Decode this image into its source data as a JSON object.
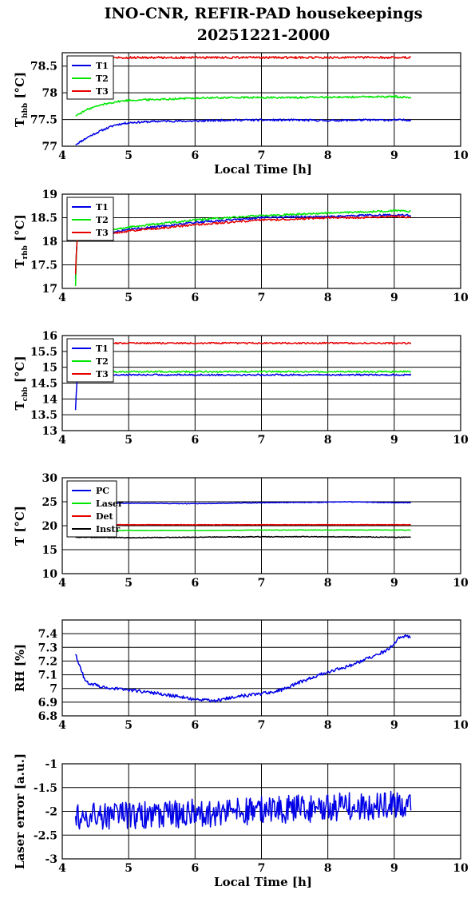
{
  "title": {
    "line1": "INO-CNR, REFIR-PAD housekeepings",
    "line2": "20251221-2000"
  },
  "xlabel": "Local Time [h]",
  "colors": {
    "blue": "#0000e6",
    "green": "#00e600",
    "red": "#e60000",
    "black": "#000000"
  },
  "chart_data": [
    {
      "type": "line",
      "ylabel_main": "T",
      "ylabel_sub": "hbb",
      "ylabel_unit": " [°C]",
      "xlim": [
        4,
        10
      ],
      "ylim": [
        77,
        78.75
      ],
      "xticks": [
        "4",
        "5",
        "6",
        "7",
        "8",
        "9",
        "10"
      ],
      "yticks": [
        {
          "v": 77,
          "t": "77"
        },
        {
          "v": 77.5,
          "t": "77.5"
        },
        {
          "v": 78,
          "t": "78"
        },
        {
          "v": 78.5,
          "t": "78.5"
        }
      ],
      "legend": "top-left",
      "series": [
        {
          "name": "T1",
          "color": "#0000e6",
          "x": [
            4.2,
            4.4,
            4.6,
            4.8,
            5.0,
            5.5,
            6.0,
            6.5,
            7.0,
            7.5,
            8.0,
            8.5,
            9.0,
            9.25
          ],
          "y": [
            77.03,
            77.18,
            77.3,
            77.4,
            77.44,
            77.47,
            77.47,
            77.49,
            77.49,
            77.49,
            77.48,
            77.49,
            77.49,
            77.49
          ],
          "noise": 0.018
        },
        {
          "name": "T2",
          "color": "#00e600",
          "x": [
            4.2,
            4.4,
            4.6,
            4.8,
            5.0,
            5.5,
            6.0,
            6.5,
            7.0,
            7.5,
            8.0,
            8.5,
            9.0,
            9.25
          ],
          "y": [
            77.57,
            77.7,
            77.78,
            77.83,
            77.86,
            77.88,
            77.9,
            77.91,
            77.91,
            77.91,
            77.92,
            77.92,
            77.93,
            77.91
          ],
          "noise": 0.018
        },
        {
          "name": "T3",
          "color": "#e60000",
          "x": [
            4.2,
            4.8,
            5.5,
            6.5,
            7.5,
            8.5,
            9.25
          ],
          "y": [
            78.65,
            78.66,
            78.66,
            78.66,
            78.66,
            78.66,
            78.66
          ],
          "noise": 0.02
        }
      ]
    },
    {
      "type": "line",
      "ylabel_main": "T",
      "ylabel_sub": "rbb",
      "ylabel_unit": " [°C]",
      "xlim": [
        4,
        10
      ],
      "ylim": [
        17,
        19
      ],
      "xticks": [
        "4",
        "5",
        "6",
        "7",
        "8",
        "9",
        "10"
      ],
      "yticks": [
        {
          "v": 17,
          "t": "17"
        },
        {
          "v": 17.5,
          "t": "17.5"
        },
        {
          "v": 18,
          "t": "18"
        },
        {
          "v": 18.5,
          "t": "18.5"
        },
        {
          "v": 19,
          "t": "19"
        }
      ],
      "legend": "top-left",
      "series": [
        {
          "name": "T1",
          "color": "#0000e6",
          "x": [
            4.2,
            4.22,
            4.3,
            4.6,
            5.0,
            5.5,
            6.0,
            6.5,
            7.0,
            7.5,
            8.0,
            8.5,
            9.0,
            9.25
          ],
          "y": [
            17.2,
            18.05,
            18.1,
            18.15,
            18.25,
            18.32,
            18.4,
            18.45,
            18.5,
            18.52,
            18.52,
            18.55,
            18.56,
            18.55
          ],
          "noise": 0.02
        },
        {
          "name": "T2",
          "color": "#00e600",
          "x": [
            4.2,
            4.22,
            4.3,
            4.6,
            5.0,
            5.5,
            6.0,
            6.5,
            7.0,
            7.5,
            8.0,
            8.5,
            9.0,
            9.25
          ],
          "y": [
            17.05,
            18.05,
            18.12,
            18.2,
            18.3,
            18.38,
            18.45,
            18.5,
            18.55,
            18.57,
            18.6,
            18.62,
            18.65,
            18.63
          ],
          "noise": 0.02
        },
        {
          "name": "T3",
          "color": "#e60000",
          "x": [
            4.2,
            4.22,
            4.3,
            4.6,
            5.0,
            5.5,
            6.0,
            6.5,
            7.0,
            7.5,
            8.0,
            8.5,
            9.0,
            9.25
          ],
          "y": [
            17.3,
            18.0,
            18.08,
            18.13,
            18.22,
            18.28,
            18.35,
            18.4,
            18.45,
            18.47,
            18.5,
            18.5,
            18.53,
            18.51
          ],
          "noise": 0.02
        }
      ]
    },
    {
      "type": "line",
      "ylabel_main": "T",
      "ylabel_sub": "cbb",
      "ylabel_unit": " [°C]",
      "xlim": [
        4,
        10
      ],
      "ylim": [
        13,
        16
      ],
      "xticks": [
        "4",
        "5",
        "6",
        "7",
        "8",
        "9",
        "10"
      ],
      "yticks": [
        {
          "v": 13,
          "t": "13"
        },
        {
          "v": 13.5,
          "t": "13.5"
        },
        {
          "v": 14,
          "t": "14"
        },
        {
          "v": 14.5,
          "t": "14.5"
        },
        {
          "v": 15,
          "t": "15"
        },
        {
          "v": 15.5,
          "t": "15.5"
        },
        {
          "v": 16,
          "t": "16"
        }
      ],
      "legend": "top-left",
      "series": [
        {
          "name": "T1",
          "color": "#0000e6",
          "x": [
            4.2,
            4.22,
            4.35,
            5.0,
            6.0,
            7.0,
            8.0,
            9.0,
            9.25
          ],
          "y": [
            13.65,
            14.6,
            14.75,
            14.76,
            14.76,
            14.76,
            14.76,
            14.76,
            14.76
          ],
          "noise": 0.025
        },
        {
          "name": "T2",
          "color": "#00e600",
          "x": [
            4.2,
            4.35,
            5.0,
            6.0,
            7.0,
            8.0,
            9.0,
            9.25
          ],
          "y": [
            14.85,
            14.86,
            14.86,
            14.86,
            14.86,
            14.86,
            14.86,
            14.86
          ],
          "noise": 0.025
        },
        {
          "name": "T3",
          "color": "#e60000",
          "x": [
            4.2,
            4.35,
            5.0,
            6.0,
            7.0,
            8.0,
            9.0,
            9.25
          ],
          "y": [
            15.75,
            15.76,
            15.76,
            15.76,
            15.76,
            15.76,
            15.76,
            15.76
          ],
          "noise": 0.025
        }
      ]
    },
    {
      "type": "line",
      "ylabel_main": "T [°C]",
      "ylabel_sub": "",
      "ylabel_unit": "",
      "xlim": [
        4,
        10
      ],
      "ylim": [
        10,
        30
      ],
      "xticks": [
        "4",
        "5",
        "6",
        "7",
        "8",
        "9",
        "10"
      ],
      "yticks": [
        {
          "v": 10,
          "t": "10"
        },
        {
          "v": 15,
          "t": "15"
        },
        {
          "v": 20,
          "t": "20"
        },
        {
          "v": 25,
          "t": "25"
        },
        {
          "v": 30,
          "t": "30"
        }
      ],
      "legend": "top-left",
      "series": [
        {
          "name": "PC",
          "color": "#0000e6",
          "x": [
            4.2,
            5.0,
            6.0,
            7.0,
            8.0,
            8.3,
            9.0,
            9.25
          ],
          "y": [
            24.7,
            24.7,
            24.6,
            24.8,
            24.9,
            25.0,
            24.8,
            24.8
          ],
          "noise": 0.06
        },
        {
          "name": "Laser",
          "color": "#00e600",
          "x": [
            4.2,
            5.0,
            6.0,
            7.0,
            8.0,
            9.0,
            9.25
          ],
          "y": [
            19.0,
            19.0,
            19.0,
            19.1,
            19.1,
            19.1,
            19.1
          ],
          "noise": 0.06
        },
        {
          "name": "Det",
          "color": "#e60000",
          "x": [
            4.2,
            5.0,
            6.0,
            7.0,
            8.0,
            9.0,
            9.25
          ],
          "y": [
            20.2,
            20.2,
            20.2,
            20.2,
            20.2,
            20.2,
            20.2
          ],
          "noise": 0.05
        },
        {
          "name": "Instr",
          "color": "#000000",
          "x": [
            4.2,
            5.0,
            6.0,
            7.0,
            8.0,
            9.0,
            9.25
          ],
          "y": [
            17.6,
            17.5,
            17.6,
            17.7,
            17.7,
            17.6,
            17.6
          ],
          "noise": 0.08
        }
      ]
    },
    {
      "type": "line",
      "ylabel_main": "RH [%]",
      "ylabel_sub": "",
      "ylabel_unit": "",
      "xlim": [
        4,
        10
      ],
      "ylim": [
        6.8,
        7.5
      ],
      "xticks": [
        "4",
        "5",
        "6",
        "7",
        "8",
        "9",
        "10"
      ],
      "yticks": [
        {
          "v": 6.8,
          "t": "6.8"
        },
        {
          "v": 6.9,
          "t": "6.9"
        },
        {
          "v": 7.0,
          "t": "7"
        },
        {
          "v": 7.1,
          "t": "7.1"
        },
        {
          "v": 7.2,
          "t": "7.2"
        },
        {
          "v": 7.3,
          "t": "7.3"
        },
        {
          "v": 7.4,
          "t": "7.4"
        }
      ],
      "legend": "none",
      "series": [
        {
          "name": "",
          "color": "#0000e6",
          "x": [
            4.2,
            4.35,
            4.6,
            5.0,
            5.5,
            6.0,
            6.3,
            6.6,
            7.0,
            7.3,
            7.6,
            8.0,
            8.3,
            8.6,
            8.9,
            9.1,
            9.25
          ],
          "y": [
            7.25,
            7.05,
            7.01,
            6.99,
            6.96,
            6.92,
            6.91,
            6.94,
            6.96,
            6.99,
            7.05,
            7.12,
            7.16,
            7.22,
            7.28,
            7.38,
            7.38
          ],
          "noise": 0.012
        }
      ]
    },
    {
      "type": "line",
      "ylabel_main": "Laser error [a.u.]",
      "ylabel_sub": "",
      "ylabel_unit": "",
      "xlim": [
        4,
        10
      ],
      "ylim": [
        -3,
        -1
      ],
      "xticks": [
        "4",
        "5",
        "6",
        "7",
        "8",
        "9",
        "10"
      ],
      "yticks": [
        {
          "v": -3,
          "t": "-3"
        },
        {
          "v": -2.5,
          "t": "-2.5"
        },
        {
          "v": -2,
          "t": "-2"
        },
        {
          "v": -1.5,
          "t": "-1.5"
        },
        {
          "v": -1,
          "t": "-1"
        }
      ],
      "legend": "none",
      "series": [
        {
          "name": "",
          "color": "#0000e6",
          "x": [
            4.2,
            4.45,
            4.5,
            4.95,
            5.0,
            9.25
          ],
          "y": [
            -2.1,
            -2.1,
            -2.08,
            -2.08,
            -2.1,
            -1.85
          ],
          "noise": 0.3
        }
      ]
    }
  ]
}
